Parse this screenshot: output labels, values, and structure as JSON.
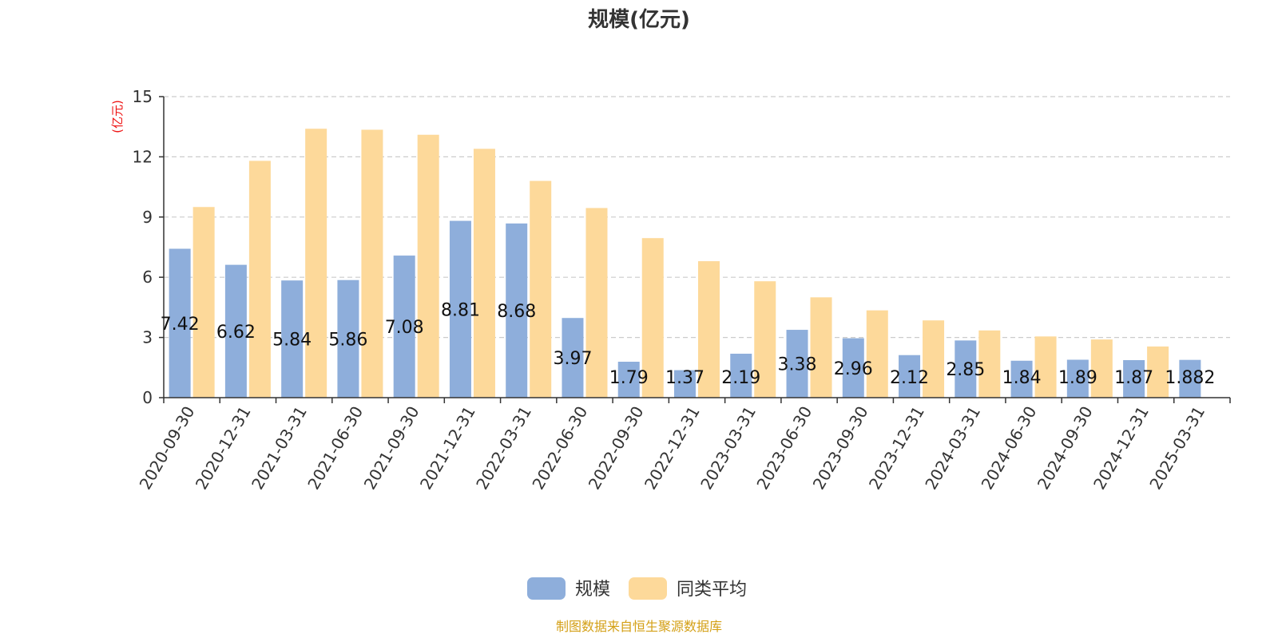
{
  "chart_data": {
    "type": "bar",
    "title": "规模(亿元)",
    "ylabel": "(亿元)",
    "ylim": [
      0,
      15
    ],
    "yticks": [
      0,
      3,
      6,
      9,
      12,
      15
    ],
    "grid": "horizontal-dashed",
    "legend_position": "bottom-center",
    "categories": [
      "2020-09-30",
      "2020-12-31",
      "2021-03-31",
      "2021-06-30",
      "2021-09-30",
      "2021-12-31",
      "2022-03-31",
      "2022-06-30",
      "2022-09-30",
      "2022-12-31",
      "2023-03-31",
      "2023-06-30",
      "2023-09-30",
      "2023-12-31",
      "2024-03-31",
      "2024-06-30",
      "2024-09-30",
      "2024-12-31",
      "2025-03-31"
    ],
    "series": [
      {
        "name": "规模",
        "color": "#8eaedb",
        "values": [
          7.42,
          6.62,
          5.84,
          5.86,
          7.08,
          8.81,
          8.68,
          3.97,
          1.79,
          1.37,
          2.19,
          3.38,
          2.96,
          2.12,
          2.85,
          1.84,
          1.89,
          1.87,
          1.882
        ],
        "labels": [
          "7.42",
          "6.62",
          "5.84",
          "5.86",
          "7.08",
          "8.81",
          "8.68",
          "3.97",
          "1.79",
          "1.37",
          "2.19",
          "3.38",
          "2.96",
          "2.12",
          "2.85",
          "1.84",
          "1.89",
          "1.87",
          "1.882"
        ]
      },
      {
        "name": "同类平均",
        "color": "#fdd99a",
        "values": [
          9.5,
          11.8,
          13.4,
          13.35,
          13.1,
          12.4,
          10.8,
          9.45,
          7.95,
          6.8,
          5.8,
          5.0,
          4.35,
          3.85,
          3.35,
          3.05,
          2.9,
          2.55,
          null
        ]
      }
    ],
    "source_note": "制图数据来自恒生聚源数据库",
    "source_color": "#d4a017"
  }
}
